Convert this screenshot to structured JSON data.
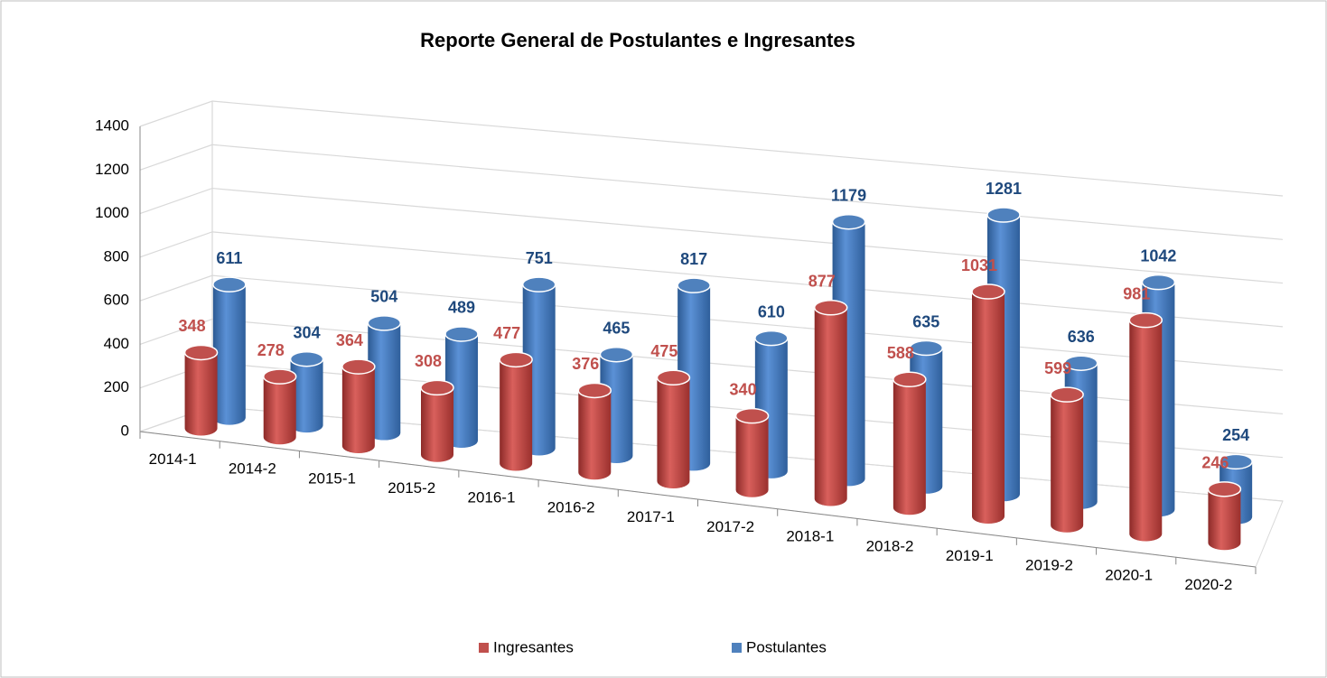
{
  "chart_data": {
    "type": "bar3d",
    "title": "Reporte General de Postulantes e Ingresantes",
    "categories": [
      "2014-1",
      "2014-2",
      "2015-1",
      "2015-2",
      "2016-1",
      "2016-2",
      "2017-1",
      "2017-2",
      "2018-1",
      "2018-2",
      "2019-1",
      "2019-2",
      "2020-1",
      "2020-2"
    ],
    "series": [
      {
        "name": "Ingresantes",
        "color": "#c0504d",
        "values": [
          348,
          278,
          364,
          308,
          477,
          376,
          475,
          340,
          877,
          588,
          1031,
          599,
          981,
          246
        ]
      },
      {
        "name": "Postulantes",
        "color": "#4f81bd",
        "values": [
          611,
          304,
          504,
          489,
          751,
          465,
          817,
          610,
          1179,
          635,
          1281,
          636,
          1042,
          254
        ]
      }
    ],
    "ylim": [
      0,
      1400
    ],
    "yticks": [
      0,
      200,
      400,
      600,
      800,
      1000,
      1200,
      1400
    ],
    "grid": true,
    "legend": "bottom"
  }
}
